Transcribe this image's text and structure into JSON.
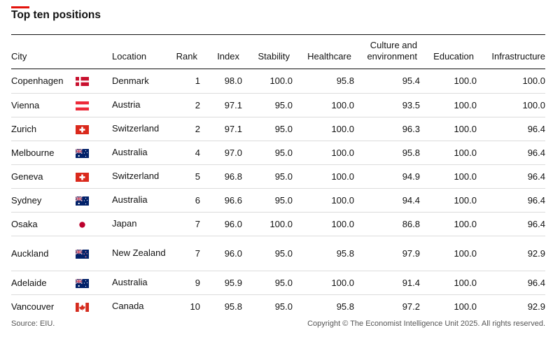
{
  "title": "Top ten positions",
  "columns": {
    "city": "City",
    "location": "Location",
    "rank": "Rank",
    "index": "Index",
    "stability": "Stability",
    "healthcare": "Healthcare",
    "culture_line1": "Culture and",
    "culture_line2": "environment",
    "education": "Education",
    "infrastructure": "Infrastructure"
  },
  "rows": [
    {
      "city": "Copenhagen",
      "flag": "denmark-flag",
      "location": "Denmark",
      "rank": "1",
      "index": "98.0",
      "stability": "100.0",
      "healthcare": "95.8",
      "culture": "95.4",
      "education": "100.0",
      "infrastructure": "100.0"
    },
    {
      "city": "Vienna",
      "flag": "austria-flag",
      "location": "Austria",
      "rank": "2",
      "index": "97.1",
      "stability": "95.0",
      "healthcare": "100.0",
      "culture": "93.5",
      "education": "100.0",
      "infrastructure": "100.0"
    },
    {
      "city": "Zurich",
      "flag": "switzerland-flag",
      "location": "Switzerland",
      "rank": "2",
      "index": "97.1",
      "stability": "95.0",
      "healthcare": "100.0",
      "culture": "96.3",
      "education": "100.0",
      "infrastructure": "96.4"
    },
    {
      "city": "Melbourne",
      "flag": "australia-flag",
      "location": "Australia",
      "rank": "4",
      "index": "97.0",
      "stability": "95.0",
      "healthcare": "100.0",
      "culture": "95.8",
      "education": "100.0",
      "infrastructure": "96.4"
    },
    {
      "city": "Geneva",
      "flag": "switzerland-flag",
      "location": "Switzerland",
      "rank": "5",
      "index": "96.8",
      "stability": "95.0",
      "healthcare": "100.0",
      "culture": "94.9",
      "education": "100.0",
      "infrastructure": "96.4"
    },
    {
      "city": "Sydney",
      "flag": "australia-flag",
      "location": "Australia",
      "rank": "6",
      "index": "96.6",
      "stability": "95.0",
      "healthcare": "100.0",
      "culture": "94.4",
      "education": "100.0",
      "infrastructure": "96.4"
    },
    {
      "city": "Osaka",
      "flag": "japan-flag",
      "location": "Japan",
      "rank": "7",
      "index": "96.0",
      "stability": "100.0",
      "healthcare": "100.0",
      "culture": "86.8",
      "education": "100.0",
      "infrastructure": "96.4"
    },
    {
      "city": "Auckland",
      "flag": "new-zealand-flag",
      "location": "New Zealand",
      "rank": "7",
      "index": "96.0",
      "stability": "95.0",
      "healthcare": "95.8",
      "culture": "97.9",
      "education": "100.0",
      "infrastructure": "92.9"
    },
    {
      "city": "Adelaide",
      "flag": "australia-flag",
      "location": "Australia",
      "rank": "9",
      "index": "95.9",
      "stability": "95.0",
      "healthcare": "100.0",
      "culture": "91.4",
      "education": "100.0",
      "infrastructure": "96.4"
    },
    {
      "city": "Vancouver",
      "flag": "canada-flag",
      "location": "Canada",
      "rank": "10",
      "index": "95.8",
      "stability": "95.0",
      "healthcare": "95.8",
      "culture": "97.2",
      "education": "100.0",
      "infrastructure": "92.9"
    }
  ],
  "source": "Source: EIU.",
  "copyright": "Copyright © The Economist Intelligence Unit 2025. All rights reserved.",
  "colors": {
    "accent": "#e3120b",
    "text": "#121212",
    "rule": "#dcdcdc"
  },
  "chart_data": {
    "type": "table",
    "title": "Top ten positions",
    "columns": [
      "City",
      "Location",
      "Rank",
      "Index",
      "Stability",
      "Healthcare",
      "Culture and environment",
      "Education",
      "Infrastructure"
    ],
    "rows": [
      [
        "Copenhagen",
        "Denmark",
        1,
        98.0,
        100.0,
        95.8,
        95.4,
        100.0,
        100.0
      ],
      [
        "Vienna",
        "Austria",
        2,
        97.1,
        95.0,
        100.0,
        93.5,
        100.0,
        100.0
      ],
      [
        "Zurich",
        "Switzerland",
        2,
        97.1,
        95.0,
        100.0,
        96.3,
        100.0,
        96.4
      ],
      [
        "Melbourne",
        "Australia",
        4,
        97.0,
        95.0,
        100.0,
        95.8,
        100.0,
        96.4
      ],
      [
        "Geneva",
        "Switzerland",
        5,
        96.8,
        95.0,
        100.0,
        94.9,
        100.0,
        96.4
      ],
      [
        "Sydney",
        "Australia",
        6,
        96.6,
        95.0,
        100.0,
        94.4,
        100.0,
        96.4
      ],
      [
        "Osaka",
        "Japan",
        7,
        96.0,
        100.0,
        100.0,
        86.8,
        100.0,
        96.4
      ],
      [
        "Auckland",
        "New Zealand",
        7,
        96.0,
        95.0,
        95.8,
        97.9,
        100.0,
        92.9
      ],
      [
        "Adelaide",
        "Australia",
        9,
        95.9,
        95.0,
        100.0,
        91.4,
        100.0,
        96.4
      ],
      [
        "Vancouver",
        "Canada",
        10,
        95.8,
        95.0,
        95.8,
        97.2,
        100.0,
        92.9
      ]
    ]
  }
}
